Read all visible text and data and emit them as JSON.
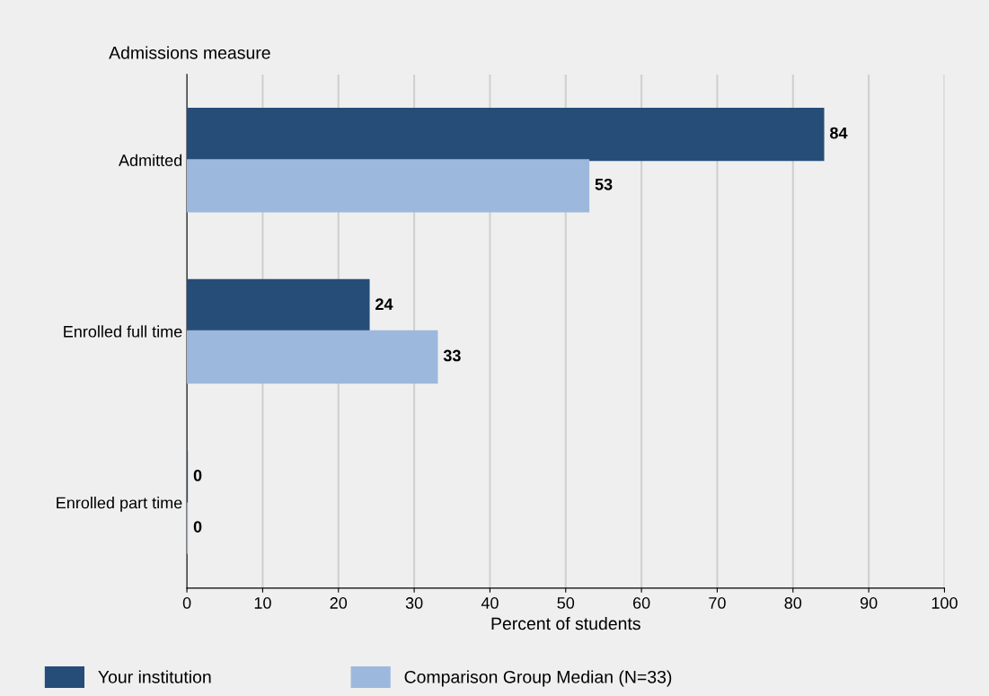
{
  "chart_data": {
    "type": "bar",
    "orientation": "horizontal",
    "ylabel": "Admissions measure",
    "xlabel": "Percent of students",
    "categories": [
      "Admitted",
      "Enrolled full time",
      "Enrolled part time"
    ],
    "series": [
      {
        "name": "Your institution",
        "color": "#264d78",
        "values": [
          84,
          24,
          0
        ]
      },
      {
        "name": "Comparison Group Median (N=33)",
        "color": "#9db8dd",
        "values": [
          53,
          33,
          0
        ]
      }
    ],
    "xlim": [
      0,
      100
    ],
    "xticks": [
      0,
      10,
      20,
      30,
      40,
      50,
      60,
      70,
      80,
      90,
      100
    ],
    "grid": "x",
    "legend": "bottom",
    "data_labels": true
  }
}
